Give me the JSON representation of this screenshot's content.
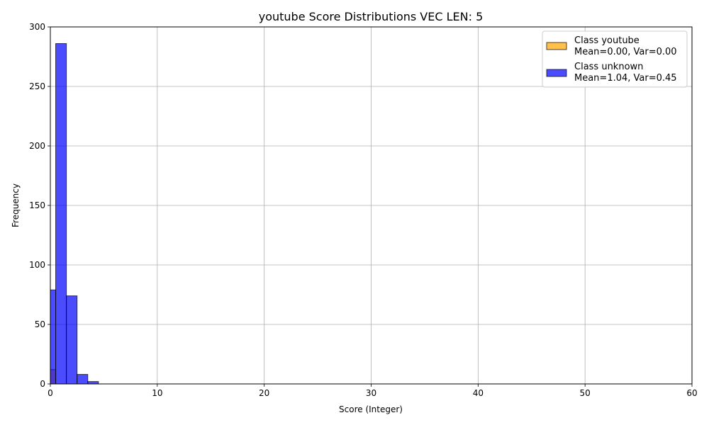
{
  "chart_data": {
    "type": "bar",
    "title": "youtube Score Distributions VEC LEN: 5",
    "xlabel": "Score (Integer)",
    "ylabel": "Frequency",
    "xlim": [
      0,
      60
    ],
    "ylim": [
      0,
      300
    ],
    "xticks": [
      "0",
      "10",
      "20",
      "30",
      "40",
      "50",
      "60"
    ],
    "yticks": [
      "0",
      "50",
      "100",
      "150",
      "200",
      "250",
      "300"
    ],
    "grid": true,
    "legend_position": "top-right",
    "series": [
      {
        "name": "Class youtube",
        "stats": "Mean=0.00, Var=0.00",
        "color": "#FFA500",
        "bins": [
          {
            "x0": -0.5,
            "x1": 0.5,
            "value": 12
          }
        ]
      },
      {
        "name": "Class unknown",
        "stats": "Mean=1.04, Var=0.45",
        "color": "#0000FF",
        "bins": [
          {
            "x0": -0.5,
            "x1": 0.5,
            "value": 79
          },
          {
            "x0": 0.5,
            "x1": 1.5,
            "value": 286
          },
          {
            "x0": 1.5,
            "x1": 2.5,
            "value": 74
          },
          {
            "x0": 2.5,
            "x1": 3.5,
            "value": 8
          },
          {
            "x0": 3.5,
            "x1": 4.5,
            "value": 2
          }
        ]
      }
    ]
  }
}
